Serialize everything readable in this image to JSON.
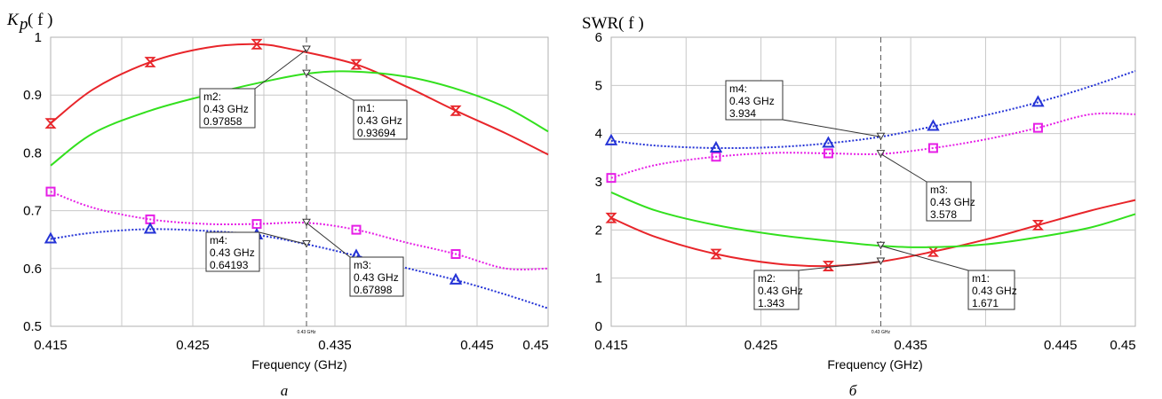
{
  "chart_data": [
    {
      "type": "line",
      "panel": "а",
      "ylabel_main": "K",
      "ylabel_sub": "p",
      "ylabel_rest": "( f )",
      "xlabel": "Frequency (GHz)",
      "xlim": [
        0.415,
        0.45
      ],
      "ylim": [
        0.5,
        1
      ],
      "xticks": [
        "0.415",
        "0.425",
        "0.435",
        "0.445",
        "0.45"
      ],
      "yticks": [
        "0.5",
        "0.6",
        "0.7",
        "0.8",
        "0.9",
        "1"
      ],
      "vline": {
        "x": 0.433,
        "label": "0.43 GHz"
      },
      "series": [
        {
          "color": "#e8252a",
          "dash": "",
          "marker": "hourglass",
          "x": [
            0.415,
            0.418,
            0.422,
            0.426,
            0.4295,
            0.432,
            0.4365,
            0.44,
            0.4435,
            0.447,
            0.45
          ],
          "y": [
            0.851,
            0.91,
            0.957,
            0.982,
            0.988,
            0.979,
            0.953,
            0.915,
            0.873,
            0.834,
            0.797
          ],
          "markers_x": [
            0.415,
            0.422,
            0.4295,
            0.4365,
            0.4435
          ]
        },
        {
          "color": "#33e01e",
          "dash": "",
          "marker": "none",
          "x": [
            0.415,
            0.418,
            0.422,
            0.426,
            0.43,
            0.433,
            0.436,
            0.44,
            0.4435,
            0.447,
            0.45
          ],
          "y": [
            0.778,
            0.834,
            0.873,
            0.9,
            0.923,
            0.937,
            0.941,
            0.932,
            0.911,
            0.879,
            0.837
          ],
          "markers_x": []
        },
        {
          "color": "#e61ee6",
          "dash": "2 2",
          "marker": "square",
          "x": [
            0.415,
            0.418,
            0.422,
            0.426,
            0.4295,
            0.433,
            0.4365,
            0.44,
            0.4435,
            0.447,
            0.45
          ],
          "y": [
            0.733,
            0.705,
            0.685,
            0.677,
            0.677,
            0.679,
            0.667,
            0.645,
            0.625,
            0.6,
            0.6
          ],
          "markers_x": [
            0.415,
            0.422,
            0.4295,
            0.4365,
            0.4435
          ]
        },
        {
          "color": "#2433d6",
          "dash": "2 2",
          "marker": "triangle",
          "x": [
            0.415,
            0.418,
            0.422,
            0.426,
            0.4295,
            0.433,
            0.4365,
            0.44,
            0.4435,
            0.447,
            0.45
          ],
          "y": [
            0.651,
            0.662,
            0.668,
            0.665,
            0.658,
            0.642,
            0.622,
            0.601,
            0.58,
            0.555,
            0.531
          ],
          "markers_x": [
            0.415,
            0.422,
            0.4295,
            0.4365,
            0.4435
          ]
        }
      ],
      "markers": [
        {
          "name": "m1:",
          "freq": "0.43 GHz",
          "value": "0.93694",
          "y": 0.93694
        },
        {
          "name": "m2:",
          "freq": "0.43 GHz",
          "value": "0.97858",
          "y": 0.97858
        },
        {
          "name": "m3:",
          "freq": "0.43 GHz",
          "value": "0.67898",
          "y": 0.67898
        },
        {
          "name": "m4:",
          "freq": "0.43 GHz",
          "value": "0.64193",
          "y": 0.64193
        }
      ]
    },
    {
      "type": "line",
      "panel": "б",
      "ylabel_main": "SWR( f )",
      "xlabel": "Frequency (GHz)",
      "xlim": [
        0.415,
        0.45
      ],
      "ylim": [
        0,
        6
      ],
      "xticks": [
        "0.415",
        "0.425",
        "0.435",
        "0.445",
        "0.45"
      ],
      "yticks": [
        "0",
        "1",
        "2",
        "3",
        "4",
        "5",
        "6"
      ],
      "vline": {
        "x": 0.433,
        "label": "0.43 GHz"
      },
      "series": [
        {
          "color": "#e8252a",
          "dash": "",
          "marker": "hourglass",
          "x": [
            0.415,
            0.418,
            0.422,
            0.426,
            0.4295,
            0.433,
            0.4365,
            0.44,
            0.4435,
            0.447,
            0.45
          ],
          "y": [
            2.25,
            1.85,
            1.5,
            1.3,
            1.25,
            1.343,
            1.55,
            1.8,
            2.1,
            2.4,
            2.62
          ],
          "markers_x": [
            0.415,
            0.422,
            0.4295,
            0.4365,
            0.4435
          ]
        },
        {
          "color": "#33e01e",
          "dash": "",
          "marker": "none",
          "x": [
            0.415,
            0.418,
            0.422,
            0.426,
            0.43,
            0.433,
            0.436,
            0.44,
            0.4435,
            0.447,
            0.45
          ],
          "y": [
            2.78,
            2.4,
            2.1,
            1.9,
            1.76,
            1.671,
            1.64,
            1.7,
            1.85,
            2.05,
            2.33
          ],
          "markers_x": []
        },
        {
          "color": "#e61ee6",
          "dash": "2 2",
          "marker": "square",
          "x": [
            0.415,
            0.418,
            0.422,
            0.426,
            0.4295,
            0.433,
            0.4365,
            0.44,
            0.4435,
            0.447,
            0.45
          ],
          "y": [
            3.08,
            3.35,
            3.52,
            3.6,
            3.59,
            3.578,
            3.7,
            3.88,
            4.12,
            4.4,
            4.4
          ],
          "markers_x": [
            0.415,
            0.422,
            0.4295,
            0.4365,
            0.4435
          ]
        },
        {
          "color": "#2433d6",
          "dash": "2 2",
          "marker": "triangle",
          "x": [
            0.415,
            0.418,
            0.422,
            0.426,
            0.4295,
            0.433,
            0.4365,
            0.44,
            0.4435,
            0.447,
            0.45
          ],
          "y": [
            3.85,
            3.75,
            3.7,
            3.72,
            3.8,
            3.934,
            4.15,
            4.38,
            4.65,
            4.98,
            5.3
          ],
          "markers_x": [
            0.415,
            0.422,
            0.4295,
            0.4365,
            0.4435
          ]
        }
      ],
      "markers": [
        {
          "name": "m1:",
          "freq": "0.43 GHz",
          "value": "1.671",
          "y": 1.671
        },
        {
          "name": "m2:",
          "freq": "0.43 GHz",
          "value": "1.343",
          "y": 1.343
        },
        {
          "name": "m3:",
          "freq": "0.43 GHz",
          "value": "3.578",
          "y": 3.578
        },
        {
          "name": "m4:",
          "freq": "0.43 GHz",
          "value": "3.934",
          "y": 3.934
        }
      ]
    }
  ]
}
